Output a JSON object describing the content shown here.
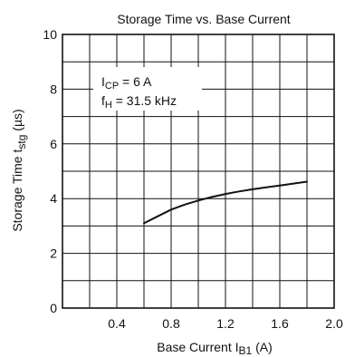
{
  "chart_data": {
    "type": "line",
    "title": "Storage Time vs. Base Current",
    "xlabel": {
      "main": "Base Current   I",
      "sub": "B1",
      "unit": " (A)"
    },
    "ylabel": {
      "main": "Storage Time   t",
      "sub": "stg",
      "unit": "  (µs)"
    },
    "xlim": [
      0,
      2.0
    ],
    "ylim": [
      0,
      10
    ],
    "x_ticks": [
      "0.4",
      "0.8",
      "1.2",
      "1.6",
      "2.0"
    ],
    "y_ticks": [
      "0",
      "2",
      "4",
      "6",
      "8",
      "10"
    ],
    "grid": true,
    "annotations": [
      {
        "main": "I",
        "sub": "CP",
        "rest": " = 6 A"
      },
      {
        "main": "f",
        "sub": "H",
        "rest": " = 31.5 kHz"
      }
    ],
    "series": [
      {
        "x": [
          0.6,
          0.7,
          0.8,
          0.9,
          1.0,
          1.1,
          1.2,
          1.3,
          1.4,
          1.5,
          1.6,
          1.7,
          1.8
        ],
        "y": [
          3.1,
          3.35,
          3.6,
          3.78,
          3.93,
          4.06,
          4.17,
          4.26,
          4.34,
          4.41,
          4.48,
          4.55,
          4.62
        ]
      }
    ]
  }
}
